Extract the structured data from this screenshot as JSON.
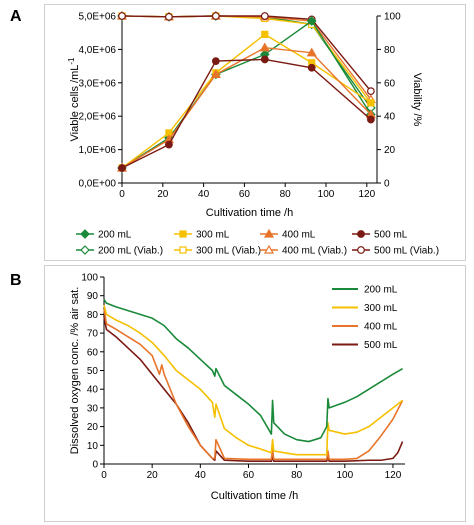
{
  "panels": {
    "a_label": "A",
    "b_label": "B"
  },
  "colors": {
    "c200": "#1a8a3a",
    "c300": "#f5c000",
    "c400": "#e8742a",
    "c500": "#7a1a12"
  },
  "chart_data": [
    {
      "type": "line",
      "xlabel": "Cultivation time /h",
      "ylabel": "Viable cells /mL",
      "ylabel_superscript": "-1",
      "y2label": "Viability /%",
      "xlim": [
        0,
        125
      ],
      "ylim": [
        0,
        5000000
      ],
      "y2lim": [
        0,
        100
      ],
      "x_ticks": [
        "0",
        "20",
        "40",
        "60",
        "80",
        "100",
        "120"
      ],
      "y_ticks": [
        "0,0E+00",
        "1,0E+06",
        "2,0E+06",
        "3,0E+06",
        "4,0E+06",
        "5,0E+06"
      ],
      "y2_ticks": [
        "0",
        "20",
        "40",
        "60",
        "80",
        "100"
      ],
      "grid": false,
      "legend_position": "bottom",
      "series": [
        {
          "name": "200 mL",
          "axis": "left",
          "marker": "diamond",
          "color_key": "c200",
          "x": [
            0,
            23,
            46,
            70,
            93,
            122
          ],
          "y": [
            450000,
            1350000,
            3250000,
            3850000,
            4850000,
            2050000
          ]
        },
        {
          "name": "300 mL",
          "axis": "left",
          "marker": "square",
          "color_key": "c300",
          "x": [
            0,
            23,
            46,
            70,
            93,
            122
          ],
          "y": [
            450000,
            1500000,
            3300000,
            4450000,
            3600000,
            2400000
          ]
        },
        {
          "name": "400 mL",
          "axis": "left",
          "marker": "triangle",
          "color_key": "c400",
          "x": [
            0,
            23,
            46,
            70,
            93,
            122
          ],
          "y": [
            450000,
            1300000,
            3250000,
            4050000,
            3900000,
            2050000
          ]
        },
        {
          "name": "500 mL",
          "axis": "left",
          "marker": "circle",
          "color_key": "c500",
          "x": [
            0,
            23,
            46,
            70,
            93,
            122
          ],
          "y": [
            450000,
            1150000,
            3650000,
            3700000,
            3450000,
            1900000
          ]
        },
        {
          "name": "200 mL (Viab.)",
          "axis": "right",
          "marker": "diamond-open",
          "color_key": "c200",
          "x": [
            0,
            23,
            46,
            70,
            93,
            122
          ],
          "y": [
            100,
            99.5,
            100,
            99.5,
            95,
            45
          ]
        },
        {
          "name": "300 mL (Viab.)",
          "axis": "right",
          "marker": "square-open",
          "color_key": "c300",
          "x": [
            0,
            23,
            46,
            70,
            93,
            122
          ],
          "y": [
            100,
            99.5,
            100,
            98.5,
            95,
            48
          ]
        },
        {
          "name": "400 mL (Viab.)",
          "axis": "right",
          "marker": "triangle-open",
          "color_key": "c400",
          "x": [
            0,
            23,
            46,
            70,
            93,
            122
          ],
          "y": [
            100,
            99.5,
            100,
            99.5,
            97,
            50
          ]
        },
        {
          "name": "500 mL (Viab.)",
          "axis": "right",
          "marker": "circle-open",
          "color_key": "c500",
          "x": [
            0,
            23,
            46,
            70,
            93,
            122
          ],
          "y": [
            100,
            99.5,
            100,
            100,
            98,
            55
          ]
        }
      ]
    },
    {
      "type": "line",
      "xlabel": "Cultivation time /h",
      "ylabel": "Dissolved oxygen conc. /% air sat.",
      "xlim": [
        0,
        125
      ],
      "ylim": [
        0,
        100
      ],
      "x_ticks": [
        "0",
        "20",
        "40",
        "60",
        "80",
        "100",
        "120"
      ],
      "y_ticks": [
        "0",
        "10",
        "20",
        "30",
        "40",
        "50",
        "60",
        "70",
        "80",
        "90",
        "100"
      ],
      "grid": false,
      "legend_position": "top-right",
      "series": [
        {
          "name": "200 mL",
          "color_key": "c200",
          "x": [
            0,
            1,
            5,
            10,
            15,
            20,
            25,
            30,
            35,
            40,
            45,
            46,
            46.5,
            50,
            55,
            60,
            65,
            69.5,
            70,
            70.5,
            75,
            80,
            85,
            90,
            92.5,
            93,
            93.5,
            100,
            105,
            110,
            115,
            120,
            124
          ],
          "y": [
            88,
            86,
            84,
            82,
            80,
            78,
            74,
            67,
            62,
            56,
            50,
            47,
            51,
            42,
            37,
            32,
            26,
            16,
            34,
            22,
            16,
            13,
            12,
            14,
            20,
            35,
            30,
            33,
            36,
            40,
            44,
            48,
            51
          ]
        },
        {
          "name": "300 mL",
          "color_key": "c300",
          "x": [
            0,
            1,
            5,
            10,
            15,
            20,
            25,
            30,
            35,
            40,
            45,
            46,
            46.5,
            50,
            55,
            60,
            65,
            69.5,
            70,
            70.5,
            75,
            80,
            85,
            90,
            92.5,
            93,
            93.5,
            100,
            105,
            110,
            115,
            120,
            124
          ],
          "y": [
            85,
            80,
            77,
            74,
            70,
            65,
            58,
            50,
            45,
            40,
            33,
            25,
            32,
            19,
            14,
            10,
            8,
            6,
            13,
            7,
            6,
            5,
            5,
            5,
            5,
            22,
            18,
            16,
            17,
            20,
            25,
            30,
            34
          ]
        },
        {
          "name": "400 mL",
          "color_key": "c400",
          "x": [
            0,
            1,
            5,
            10,
            15,
            20,
            23,
            24,
            25,
            30,
            35,
            40,
            45,
            46,
            46.5,
            50,
            60,
            69.5,
            70,
            70.5,
            80,
            90,
            92.5,
            93,
            93.5,
            100,
            105,
            110,
            115,
            120,
            124
          ],
          "y": [
            83,
            75,
            72,
            68,
            64,
            58,
            48,
            53,
            48,
            32,
            20,
            10,
            3,
            3,
            13,
            3,
            2.5,
            2.5,
            8,
            2.5,
            2.5,
            2.5,
            2.5,
            7,
            2.5,
            2.5,
            3,
            7,
            15,
            24,
            34
          ]
        },
        {
          "name": "500 mL",
          "color_key": "c500",
          "x": [
            0,
            1,
            5,
            10,
            15,
            20,
            25,
            30,
            35,
            40,
            45,
            46,
            46.5,
            50,
            60,
            69.5,
            70,
            70.5,
            80,
            90,
            92.5,
            93,
            93.5,
            100,
            110,
            115,
            120,
            122,
            124
          ],
          "y": [
            79,
            72,
            68,
            62,
            56,
            48,
            40,
            32,
            22,
            10,
            3,
            2,
            7,
            2,
            1.5,
            1.5,
            4,
            1.5,
            1.5,
            1.5,
            1.5,
            4,
            1.5,
            1.5,
            2,
            2,
            3,
            6,
            12
          ]
        }
      ]
    }
  ]
}
